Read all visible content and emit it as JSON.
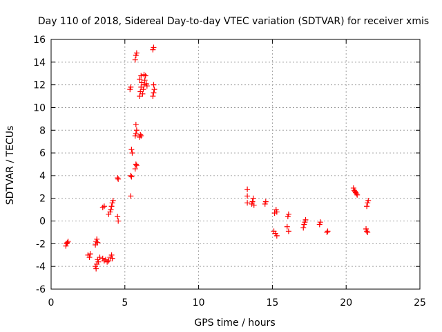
{
  "chart_data": {
    "type": "scatter",
    "title": "Day 110 of 2018, Sidereal Day-to-day VTEC variation (SDTVAR) for receiver xmis",
    "xlabel": "GPS time / hours",
    "ylabel": "SDTVAR / TECUs",
    "xlim": [
      0,
      25
    ],
    "ylim": [
      -6,
      16
    ],
    "xticks": [
      0,
      5,
      10,
      15,
      20,
      25
    ],
    "yticks": [
      -6,
      -4,
      -2,
      0,
      2,
      4,
      6,
      8,
      10,
      12,
      14,
      16
    ],
    "grid": true,
    "marker": "+",
    "color": "#ff0000",
    "series": [
      {
        "name": "SDTVAR",
        "points": [
          [
            1.0,
            -2.2
          ],
          [
            1.05,
            -2.0
          ],
          [
            1.1,
            -1.9
          ],
          [
            1.15,
            -1.8
          ],
          [
            2.5,
            -3.0
          ],
          [
            2.6,
            -3.2
          ],
          [
            2.65,
            -2.9
          ],
          [
            3.0,
            -4.0
          ],
          [
            3.05,
            -4.2
          ],
          [
            3.1,
            -3.8
          ],
          [
            3.15,
            -3.4
          ],
          [
            3.0,
            -2.1
          ],
          [
            3.05,
            -1.8
          ],
          [
            3.1,
            -1.6
          ],
          [
            3.15,
            -1.9
          ],
          [
            3.2,
            -3.6
          ],
          [
            3.3,
            -3.2
          ],
          [
            3.5,
            -3.3
          ],
          [
            3.6,
            -3.5
          ],
          [
            3.7,
            -3.4
          ],
          [
            3.8,
            -3.6
          ],
          [
            3.9,
            -3.5
          ],
          [
            4.0,
            -3.2
          ],
          [
            4.1,
            -3.0
          ],
          [
            4.15,
            -3.3
          ],
          [
            3.5,
            1.2
          ],
          [
            3.6,
            1.3
          ],
          [
            3.9,
            0.6
          ],
          [
            4.0,
            0.8
          ],
          [
            4.05,
            1.0
          ],
          [
            4.1,
            1.3
          ],
          [
            4.15,
            1.6
          ],
          [
            4.2,
            1.8
          ],
          [
            4.5,
            0.4
          ],
          [
            4.55,
            0.0
          ],
          [
            4.5,
            3.8
          ],
          [
            4.55,
            3.7
          ],
          [
            5.35,
            11.6
          ],
          [
            5.4,
            11.8
          ],
          [
            5.4,
            4.0
          ],
          [
            5.45,
            3.9
          ],
          [
            5.5,
            6.0
          ],
          [
            5.45,
            6.3
          ],
          [
            5.4,
            2.2
          ],
          [
            5.7,
            4.6
          ],
          [
            5.75,
            5.0
          ],
          [
            5.8,
            4.9
          ],
          [
            5.7,
            7.5
          ],
          [
            5.75,
            7.7
          ],
          [
            5.8,
            8.0
          ],
          [
            5.75,
            8.5
          ],
          [
            5.7,
            14.2
          ],
          [
            5.75,
            14.6
          ],
          [
            5.8,
            14.8
          ],
          [
            6.0,
            7.4
          ],
          [
            6.05,
            7.6
          ],
          [
            6.1,
            7.5
          ],
          [
            6.0,
            11.0
          ],
          [
            6.05,
            11.4
          ],
          [
            6.1,
            11.8
          ],
          [
            6.15,
            12.2
          ],
          [
            6.0,
            12.5
          ],
          [
            6.1,
            12.8
          ],
          [
            6.2,
            11.2
          ],
          [
            6.25,
            11.6
          ],
          [
            6.3,
            12.0
          ],
          [
            6.35,
            12.4
          ],
          [
            6.4,
            12.8
          ],
          [
            6.45,
            12.1
          ],
          [
            6.5,
            11.9
          ],
          [
            6.3,
            12.9
          ],
          [
            6.9,
            11.0
          ],
          [
            6.95,
            11.3
          ],
          [
            7.0,
            11.6
          ],
          [
            6.95,
            12.0
          ],
          [
            6.9,
            15.1
          ],
          [
            6.95,
            15.3
          ],
          [
            13.3,
            1.6
          ],
          [
            13.3,
            2.2
          ],
          [
            13.3,
            2.8
          ],
          [
            13.6,
            1.5
          ],
          [
            13.65,
            1.7
          ],
          [
            13.7,
            2.0
          ],
          [
            13.75,
            1.4
          ],
          [
            14.5,
            1.5
          ],
          [
            14.55,
            1.7
          ],
          [
            15.1,
            -0.9
          ],
          [
            15.15,
            0.7
          ],
          [
            15.2,
            -1.1
          ],
          [
            15.25,
            1.0
          ],
          [
            15.3,
            -1.3
          ],
          [
            15.3,
            0.8
          ],
          [
            16.0,
            -0.5
          ],
          [
            16.05,
            0.4
          ],
          [
            16.1,
            -0.9
          ],
          [
            16.1,
            0.6
          ],
          [
            17.1,
            -0.6
          ],
          [
            17.15,
            -0.3
          ],
          [
            17.2,
            -0.1
          ],
          [
            17.25,
            0.1
          ],
          [
            18.2,
            -0.3
          ],
          [
            18.25,
            -0.1
          ],
          [
            18.7,
            -1.0
          ],
          [
            18.75,
            -0.9
          ],
          [
            20.5,
            2.9
          ],
          [
            20.55,
            2.7
          ],
          [
            20.6,
            2.6
          ],
          [
            20.65,
            2.5
          ],
          [
            20.7,
            2.4
          ],
          [
            20.75,
            2.3
          ],
          [
            21.35,
            -0.7
          ],
          [
            21.4,
            -0.9
          ],
          [
            21.45,
            -1.0
          ],
          [
            21.4,
            1.3
          ],
          [
            21.45,
            1.6
          ],
          [
            21.5,
            1.8
          ]
        ]
      }
    ]
  }
}
